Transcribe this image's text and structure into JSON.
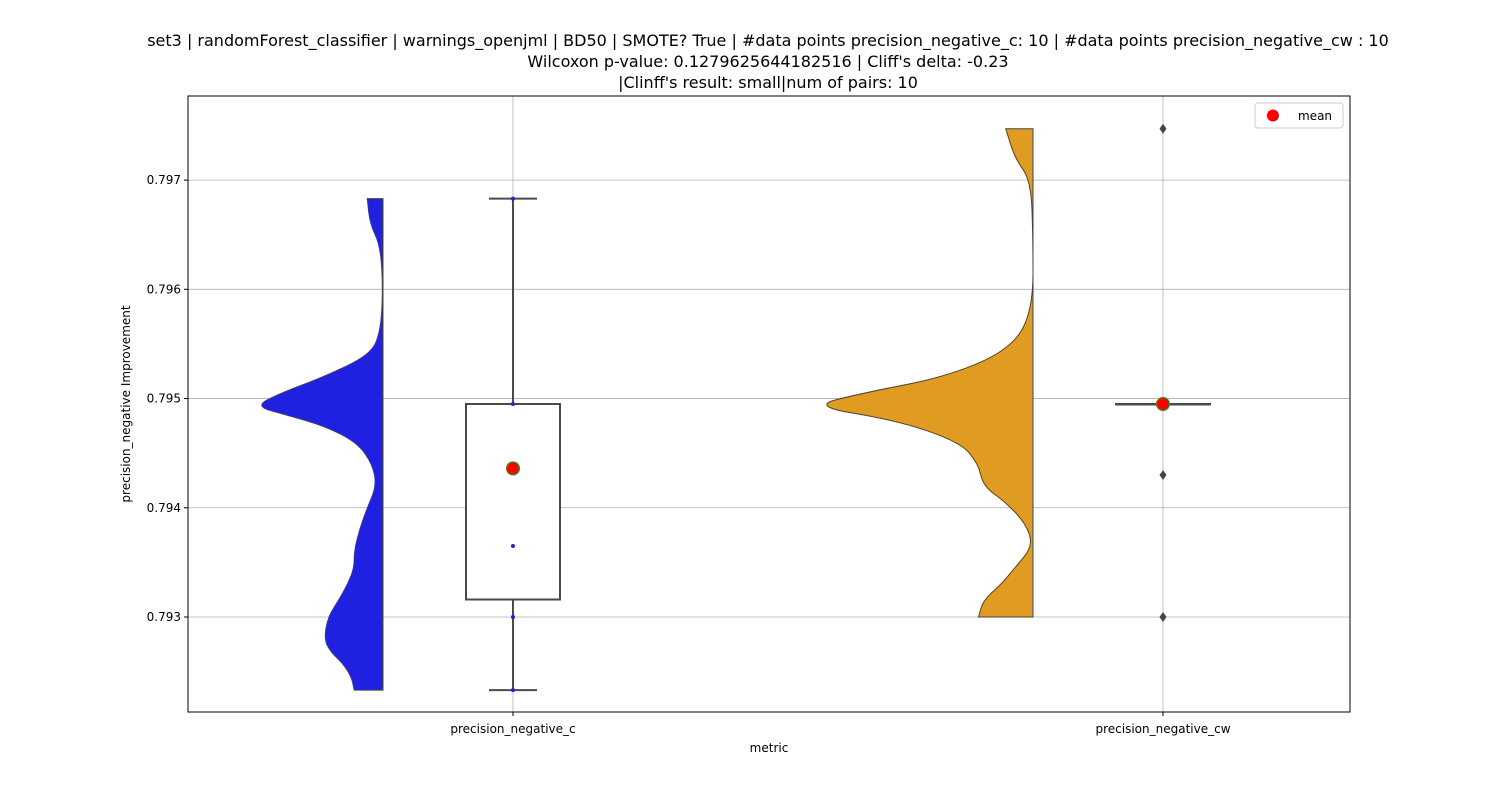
{
  "chart_data": {
    "type": "violin-box",
    "title_lines": [
      "set3 | randomForest_classifier | warnings_openjml | BD50 | SMOTE? True | #data points precision_negative_c: 10 | #data points precision_negative_cw : 10",
      "Wilcoxon p-value: 0.1279625644182516 | Cliff's delta: -0.23",
      "|Clinff's result: small|num of pairs: 10"
    ],
    "xlabel": "metric",
    "ylabel": "precision_negative Improvement",
    "categories": [
      "precision_negative_c",
      "precision_negative_cw"
    ],
    "ylim": [
      0.79213,
      0.79777
    ],
    "yticks": [
      0.793,
      0.794,
      0.795,
      0.796,
      0.797
    ],
    "ytick_labels": [
      "0.793",
      "0.794",
      "0.795",
      "0.796",
      "0.797"
    ],
    "grid": true,
    "legend": {
      "position": "top-right",
      "entries": [
        "mean"
      ]
    },
    "colors": {
      "violin_c": "#2020e0",
      "violin_cw": "#e09b22",
      "mean": "#ff0000",
      "mean_edge": "#2ca02c",
      "box_edge": "#4a4a4a",
      "grid": "#b0b0b0"
    },
    "series": [
      {
        "name": "precision_negative_c",
        "violin_range": [
          0.79233,
          0.79683
        ],
        "violin_density": [
          [
            0.79233,
            0.22
          ],
          [
            0.79245,
            0.24
          ],
          [
            0.79258,
            0.31
          ],
          [
            0.79268,
            0.4
          ],
          [
            0.7928,
            0.45
          ],
          [
            0.793,
            0.42
          ],
          [
            0.79315,
            0.34
          ],
          [
            0.7933,
            0.27
          ],
          [
            0.79345,
            0.22
          ],
          [
            0.7936,
            0.22
          ],
          [
            0.7938,
            0.18
          ],
          [
            0.794,
            0.12
          ],
          [
            0.7942,
            0.05
          ],
          [
            0.7944,
            0.08
          ],
          [
            0.7946,
            0.2
          ],
          [
            0.79475,
            0.45
          ],
          [
            0.79485,
            0.74
          ],
          [
            0.79493,
            0.98
          ],
          [
            0.79505,
            0.78
          ],
          [
            0.7952,
            0.45
          ],
          [
            0.7954,
            0.1
          ],
          [
            0.7956,
            0.02
          ],
          [
            0.796,
            0.0
          ],
          [
            0.7964,
            0.02
          ],
          [
            0.7966,
            0.1
          ],
          [
            0.79683,
            0.12
          ]
        ],
        "box": {
          "whisker_low": 0.79233,
          "q1": 0.79316,
          "median": 0.79495,
          "q3": 0.79495,
          "whisker_high": 0.79683
        },
        "points": [
          0.79233,
          0.793,
          0.79365,
          0.79495,
          0.79683
        ],
        "mean": 0.79436
      },
      {
        "name": "precision_negative_cw",
        "violin_range": [
          0.793,
          0.79747
        ],
        "violin_density": [
          [
            0.793,
            0.24
          ],
          [
            0.79315,
            0.22
          ],
          [
            0.7933,
            0.14
          ],
          [
            0.79345,
            0.08
          ],
          [
            0.79365,
            0.0
          ],
          [
            0.79385,
            0.03
          ],
          [
            0.79405,
            0.12
          ],
          [
            0.7942,
            0.22
          ],
          [
            0.7944,
            0.24
          ],
          [
            0.7946,
            0.32
          ],
          [
            0.7948,
            0.6
          ],
          [
            0.79493,
            0.98
          ],
          [
            0.79505,
            0.75
          ],
          [
            0.7952,
            0.38
          ],
          [
            0.79545,
            0.1
          ],
          [
            0.7958,
            0.0
          ],
          [
            0.7965,
            0.0
          ],
          [
            0.797,
            0.01
          ],
          [
            0.7972,
            0.08
          ],
          [
            0.79747,
            0.12
          ]
        ],
        "box": {
          "whisker_low": 0.79495,
          "q1": 0.79495,
          "median": 0.79495,
          "q3": 0.79495,
          "whisker_high": 0.79495
        },
        "outliers": [
          0.793,
          0.7943,
          0.79747
        ],
        "mean": 0.79495
      }
    ]
  }
}
